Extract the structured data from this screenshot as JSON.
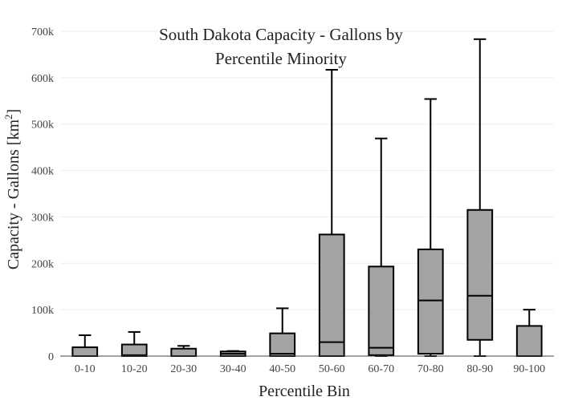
{
  "chart_data": {
    "type": "box",
    "title_line1": "South Dakota Capacity - Gallons by",
    "title_line2": "Percentile Minority",
    "xlabel": "Percentile Bin",
    "ylabel_main": "Capacity - Gallons  [km",
    "ylabel_sup": "2",
    "ylabel_end": "]",
    "ylim": [
      0,
      700000
    ],
    "yticks": [
      {
        "value": 0,
        "label": "0"
      },
      {
        "value": 100000,
        "label": "100k"
      },
      {
        "value": 200000,
        "label": "200k"
      },
      {
        "value": 300000,
        "label": "300k"
      },
      {
        "value": 400000,
        "label": "400k"
      },
      {
        "value": 500000,
        "label": "500k"
      },
      {
        "value": 600000,
        "label": "600k"
      },
      {
        "value": 700000,
        "label": "700k"
      }
    ],
    "grid": true,
    "box_color": "#a3a3a3",
    "categories": [
      "0-10",
      "10-20",
      "20-30",
      "30-40",
      "40-50",
      "50-60",
      "60-70",
      "70-80",
      "80-90",
      "90-100"
    ],
    "boxes": [
      {
        "min": 0,
        "q1": 0,
        "median": 0,
        "q3": 19000,
        "max": 45000
      },
      {
        "min": 0,
        "q1": 0,
        "median": 2000,
        "q3": 25000,
        "max": 52000
      },
      {
        "min": 0,
        "q1": 0,
        "median": 0,
        "q3": 16000,
        "max": 22000
      },
      {
        "min": 0,
        "q1": 0,
        "median": 5000,
        "q3": 10000,
        "max": 11000
      },
      {
        "min": 0,
        "q1": 0,
        "median": 5000,
        "q3": 49000,
        "max": 103000
      },
      {
        "min": 0,
        "q1": 0,
        "median": 30000,
        "q3": 262000,
        "max": 617000
      },
      {
        "min": 0,
        "q1": 2000,
        "median": 18000,
        "q3": 193000,
        "max": 469000
      },
      {
        "min": 0,
        "q1": 5000,
        "median": 120000,
        "q3": 230000,
        "max": 554000
      },
      {
        "min": 0,
        "q1": 35000,
        "median": 130000,
        "q3": 315000,
        "max": 683000
      },
      {
        "min": 0,
        "q1": 0,
        "median": 0,
        "q3": 65000,
        "max": 100000
      }
    ]
  }
}
